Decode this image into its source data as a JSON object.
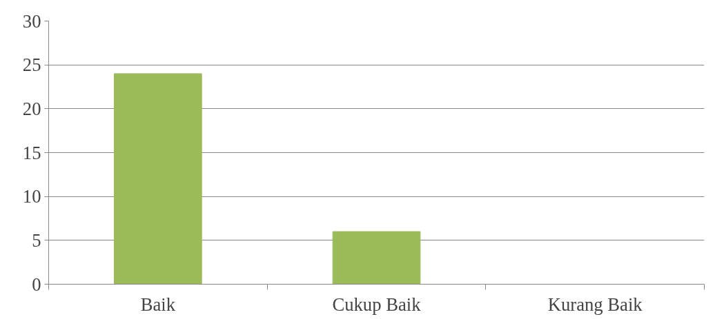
{
  "chart_data": {
    "type": "bar",
    "categories": [
      "Baik",
      "Cukup Baik",
      "Kurang Baik"
    ],
    "values": [
      24,
      6,
      0
    ],
    "color": "#9bbb59",
    "ylim": [
      0,
      30
    ],
    "yticks": [
      0,
      5,
      10,
      15,
      20,
      25,
      30
    ],
    "grid": "y"
  }
}
